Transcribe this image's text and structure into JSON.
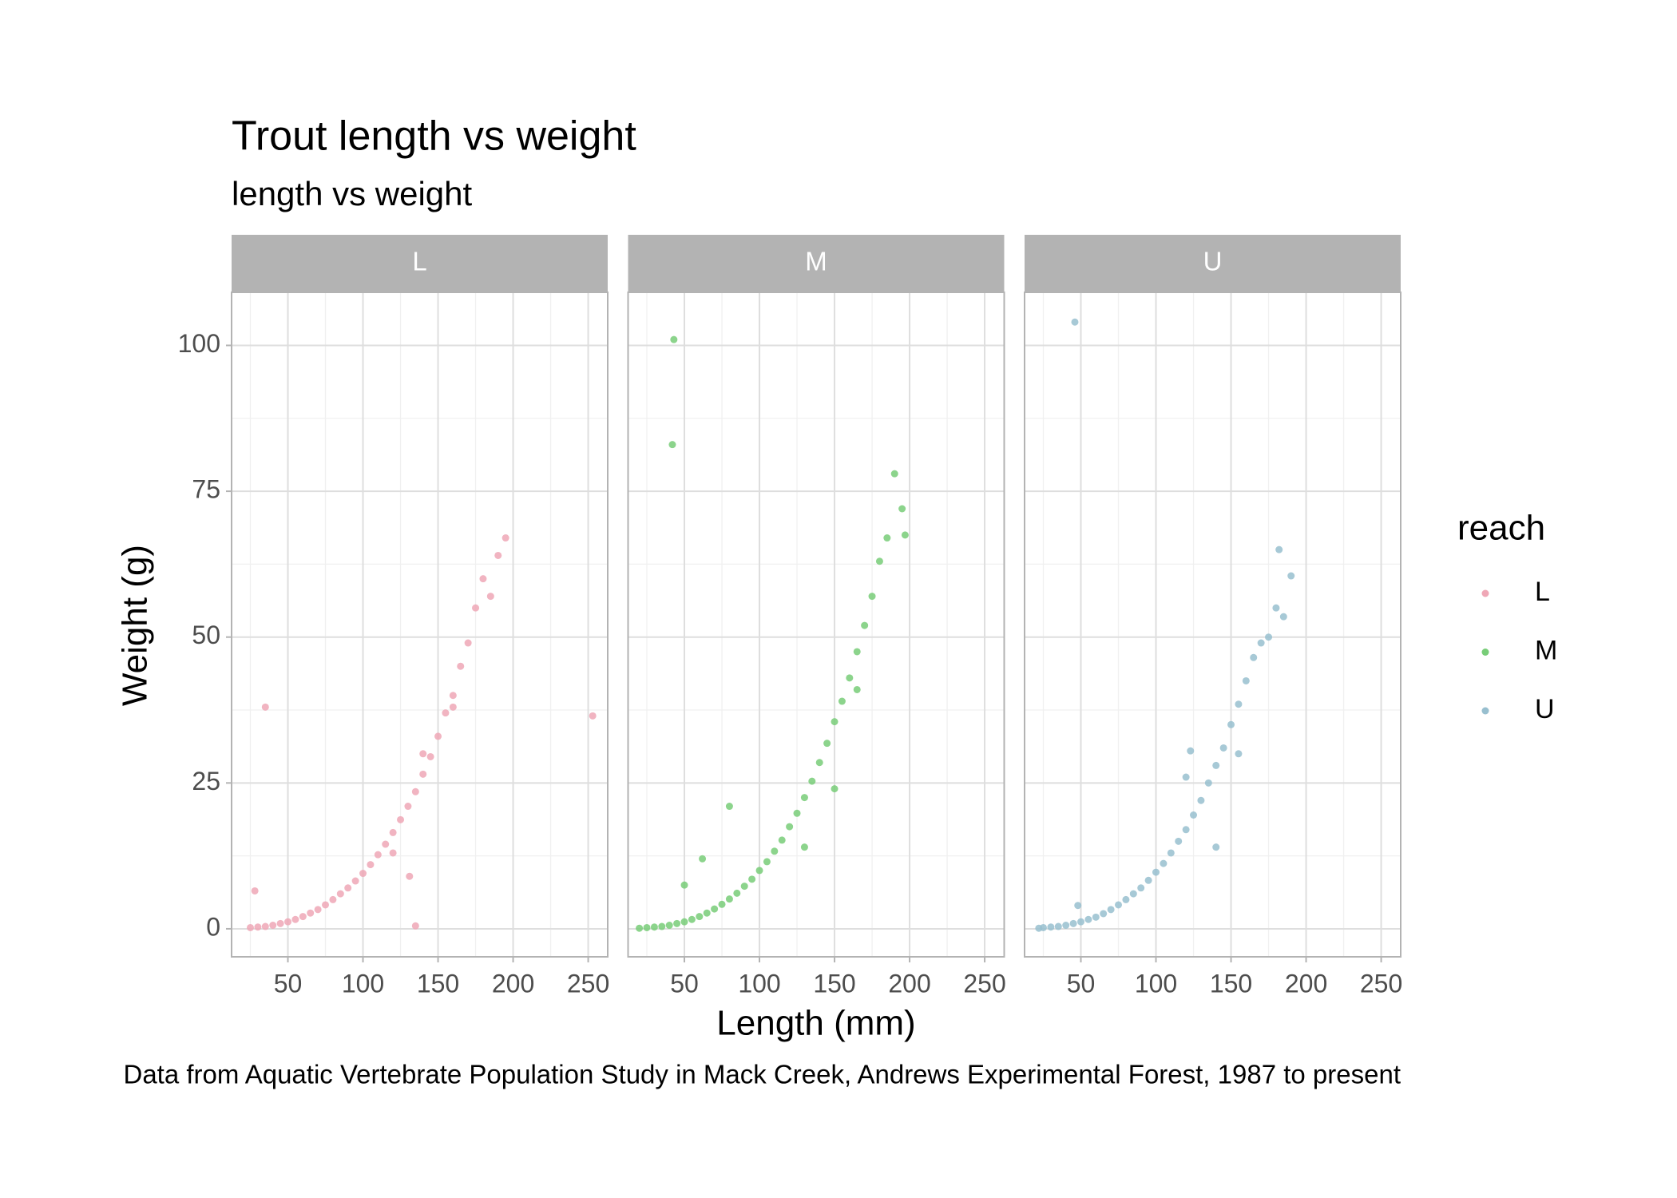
{
  "chart_data": {
    "type": "scatter",
    "title": "Trout length vs weight",
    "subtitle": "length vs weight",
    "caption": "Data from Aquatic Vertebrate Population Study in Mack Creek, Andrews Experimental Forest, 1987 to present",
    "x_label": "Length (mm)",
    "y_label": "Weight (g)",
    "legend_title": "reach",
    "xlim": [
      12.5,
      263
    ],
    "xticks": [
      50,
      100,
      150,
      200,
      250
    ],
    "ylim": [
      -4.8,
      109.1
    ],
    "yticks": [
      0,
      25,
      50,
      75,
      100
    ],
    "grid": true,
    "series": [
      {
        "name": "L",
        "color": "#efa7b6",
        "x": [
          25,
          30,
          35,
          40,
          45,
          50,
          55,
          60,
          65,
          70,
          75,
          80,
          85,
          90,
          95,
          100,
          105,
          110,
          115,
          120,
          125,
          130,
          135,
          140,
          145,
          150,
          155,
          160,
          165,
          170,
          175,
          180,
          185,
          190,
          195,
          35,
          28,
          135,
          253,
          131,
          120,
          140,
          160
        ],
        "y": [
          0.2,
          0.3,
          0.4,
          0.6,
          0.9,
          1.2,
          1.6,
          2.1,
          2.7,
          3.3,
          4.1,
          5,
          6,
          7,
          8.2,
          9.5,
          11,
          12.7,
          14.5,
          16.5,
          18.7,
          21,
          23.5,
          26.5,
          29.5,
          33,
          37,
          40,
          45,
          49,
          55,
          60,
          57,
          64,
          67,
          38,
          6.5,
          0.5,
          36.5,
          9,
          13,
          30,
          38
        ]
      },
      {
        "name": "M",
        "color": "#78cd78",
        "x": [
          20,
          25,
          30,
          35,
          40,
          45,
          50,
          55,
          60,
          65,
          70,
          75,
          80,
          85,
          90,
          95,
          100,
          105,
          110,
          115,
          120,
          125,
          130,
          135,
          140,
          145,
          150,
          155,
          160,
          165,
          170,
          175,
          180,
          185,
          190,
          195,
          197,
          43,
          42,
          80,
          50,
          62,
          130,
          150,
          165
        ],
        "y": [
          0.1,
          0.2,
          0.3,
          0.4,
          0.6,
          0.9,
          1.2,
          1.6,
          2.1,
          2.7,
          3.4,
          4.2,
          5.1,
          6.1,
          7.3,
          8.5,
          10,
          11.5,
          13.3,
          15.2,
          17.5,
          19.8,
          22.5,
          25.3,
          28.5,
          31.8,
          35.5,
          39,
          43,
          47.5,
          52,
          57,
          63,
          67,
          78,
          72,
          67.5,
          101,
          83,
          21,
          7.5,
          12,
          14,
          24,
          41
        ]
      },
      {
        "name": "U",
        "color": "#98bfcf",
        "x": [
          22,
          25,
          30,
          35,
          40,
          45,
          50,
          55,
          60,
          65,
          70,
          75,
          80,
          85,
          90,
          95,
          100,
          105,
          110,
          115,
          120,
          125,
          130,
          135,
          140,
          145,
          150,
          155,
          160,
          165,
          170,
          175,
          180,
          182,
          185,
          190,
          46,
          48,
          120,
          123,
          140,
          155
        ],
        "y": [
          0.1,
          0.2,
          0.3,
          0.4,
          0.6,
          0.9,
          1.2,
          1.6,
          2,
          2.6,
          3.3,
          4.1,
          5,
          6,
          7,
          8.3,
          9.7,
          11.2,
          13,
          15,
          17,
          19.5,
          22,
          25,
          28,
          31,
          35,
          38.5,
          42.5,
          46.5,
          49,
          50,
          55,
          65,
          53.5,
          60.5,
          104,
          4,
          26,
          30.5,
          14,
          30
        ]
      }
    ]
  }
}
